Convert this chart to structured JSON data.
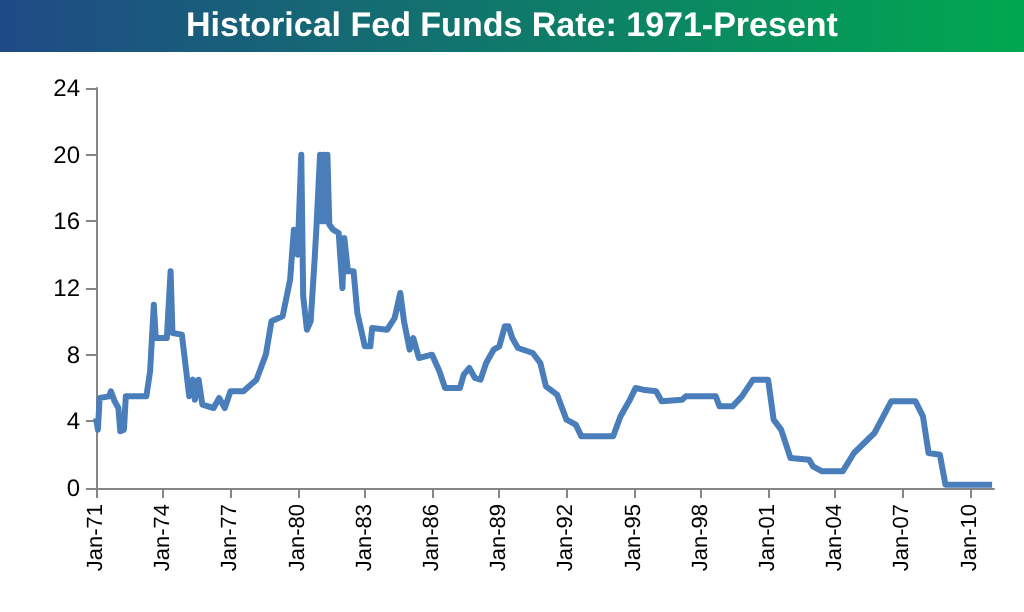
{
  "chart_data": {
    "type": "line",
    "title": "Historical Fed Funds Rate: 1971-Present",
    "x": [
      "1971-01",
      "1971-02",
      "1971-03",
      "1971-08",
      "1971-09",
      "1971-11",
      "1972-01",
      "1972-02",
      "1972-04",
      "1972-05",
      "1973-04",
      "1973-06",
      "1973-08",
      "1973-09",
      "1974-03",
      "1974-05",
      "1974-06",
      "1974-11",
      "1975-03",
      "1975-05",
      "1975-06",
      "1975-08",
      "1975-10",
      "1976-04",
      "1976-07",
      "1976-10",
      "1977-01",
      "1977-08",
      "1978-03",
      "1978-08",
      "1978-11",
      "1979-05",
      "1979-09",
      "1979-11",
      "1980-01",
      "1980-03",
      "1980-04",
      "1980-06",
      "1980-08",
      "1980-10",
      "1980-11",
      "1981-01",
      "1981-02",
      "1981-03",
      "1981-04",
      "1981-05",
      "1981-06",
      "1981-08",
      "1981-11",
      "1982-01",
      "1982-02",
      "1982-04",
      "1982-07",
      "1982-09",
      "1982-11",
      "1983-01",
      "1983-04",
      "1983-05",
      "1984-01",
      "1984-05",
      "1984-08",
      "1984-10",
      "1985-01",
      "1985-03",
      "1985-06",
      "1986-01",
      "1986-05",
      "1986-08",
      "1987-04",
      "1987-06",
      "1987-09",
      "1987-12",
      "1988-03",
      "1988-06",
      "1988-10",
      "1989-01",
      "1989-04",
      "1989-06",
      "1989-08",
      "1989-11",
      "1990-07",
      "1990-11",
      "1991-02",
      "1991-08",
      "1992-01",
      "1992-06",
      "1992-09",
      "1994-02",
      "1994-06",
      "1994-11",
      "1995-02",
      "1995-06",
      "1996-01",
      "1996-04",
      "1997-03",
      "1997-05",
      "1998-09",
      "1998-11",
      "1999-06",
      "1999-11",
      "2000-05",
      "2001-01",
      "2001-04",
      "2001-08",
      "2002-01",
      "2002-11",
      "2003-01",
      "2003-06",
      "2004-05",
      "2004-11",
      "2005-10",
      "2006-07",
      "2007-08",
      "2007-12",
      "2008-03",
      "2008-09",
      "2008-12",
      "2011-01"
    ],
    "series": [
      {
        "color": "#4a7ebb",
        "values": [
          4.2,
          3.5,
          5.4,
          5.5,
          5.8,
          5.2,
          4.8,
          3.4,
          3.5,
          5.5,
          5.5,
          7.0,
          11.0,
          9.0,
          9.0,
          13.0,
          9.3,
          9.2,
          5.5,
          6.5,
          5.3,
          6.5,
          5.0,
          4.8,
          5.4,
          4.8,
          5.8,
          5.8,
          6.5,
          8.0,
          10.0,
          10.3,
          12.5,
          15.5,
          14.0,
          20.0,
          11.5,
          9.5,
          10.0,
          13.5,
          15.5,
          20.0,
          16.0,
          20.0,
          16.0,
          20.0,
          15.8,
          15.5,
          15.3,
          12.0,
          15.0,
          13.0,
          13.0,
          10.5,
          9.5,
          8.5,
          8.5,
          9.6,
          9.5,
          10.2,
          11.7,
          10.0,
          8.3,
          9.0,
          7.8,
          8.0,
          7.0,
          6.0,
          6.0,
          6.8,
          7.2,
          6.6,
          6.5,
          7.5,
          8.3,
          8.5,
          9.7,
          9.7,
          9.0,
          8.4,
          8.1,
          7.5,
          6.1,
          5.6,
          4.1,
          3.8,
          3.1,
          3.1,
          4.3,
          5.3,
          6.0,
          5.9,
          5.8,
          5.2,
          5.3,
          5.5,
          5.5,
          4.9,
          4.9,
          5.5,
          6.5,
          6.5,
          4.1,
          3.5,
          1.8,
          1.7,
          1.3,
          1.0,
          1.0,
          2.1,
          3.3,
          5.2,
          5.2,
          4.3,
          2.1,
          2.0,
          0.2,
          0.2
        ]
      }
    ],
    "xlim": [
      "1971-01",
      "2011-02"
    ],
    "xticks": [
      {
        "value": "1971-01",
        "label": "Jan-71"
      },
      {
        "value": "1974-01",
        "label": "Jan-74"
      },
      {
        "value": "1977-01",
        "label": "Jan-77"
      },
      {
        "value": "1980-01",
        "label": "Jan-80"
      },
      {
        "value": "1983-01",
        "label": "Jan-83"
      },
      {
        "value": "1986-01",
        "label": "Jan-86"
      },
      {
        "value": "1989-01",
        "label": "Jan-89"
      },
      {
        "value": "1992-01",
        "label": "Jan-92"
      },
      {
        "value": "1995-01",
        "label": "Jan-95"
      },
      {
        "value": "1998-01",
        "label": "Jan-98"
      },
      {
        "value": "2001-01",
        "label": "Jan-01"
      },
      {
        "value": "2004-01",
        "label": "Jan-04"
      },
      {
        "value": "2007-01",
        "label": "Jan-07"
      },
      {
        "value": "2010-01",
        "label": "Jan-10"
      }
    ],
    "ylim": [
      0,
      24
    ],
    "yticks": [
      0,
      4,
      8,
      12,
      16,
      20,
      24
    ],
    "grid": false,
    "marker": "none",
    "line_style": "solid"
  }
}
